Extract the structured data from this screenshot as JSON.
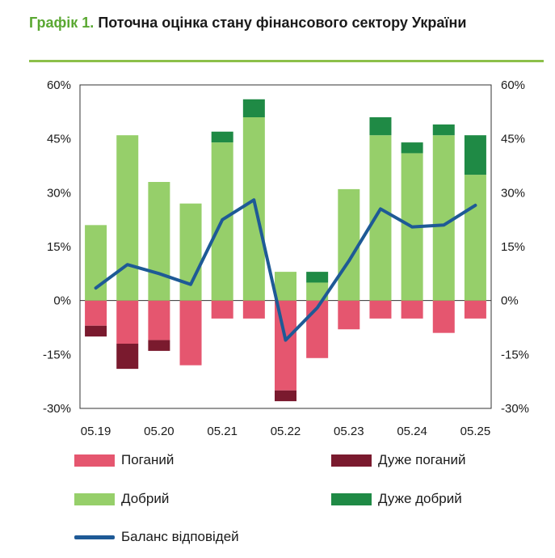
{
  "title": {
    "number": "Графік 1.",
    "text": "Поточна оцінка стану фінансового сектору України"
  },
  "colors": {
    "bad": "#e5566f",
    "very_bad": "#7a1a2e",
    "good": "#96cf6a",
    "very_good": "#1f8a45",
    "balance": "#1e5a96"
  },
  "chart_data": {
    "type": "bar",
    "subtype": "stacked bar with line overlay",
    "title": "",
    "x_tick_labels": [
      "05.19",
      "05.20",
      "05.21",
      "05.22",
      "05.23",
      "05.24",
      "05.25"
    ],
    "y_tick_labels": [
      "60%",
      "45%",
      "30%",
      "15%",
      "0%",
      "-15%",
      "-30%"
    ],
    "ylim": [
      -30,
      60
    ],
    "y_unit": "%",
    "grid": false,
    "legend_position": "bottom",
    "num_periods": 13,
    "series": [
      {
        "name": "Поганий",
        "color": "#e5566f",
        "values": [
          -7,
          -12,
          -11,
          -18,
          -5,
          -5,
          -25,
          -16,
          -8,
          -5,
          -5,
          -9,
          -5
        ]
      },
      {
        "name": "Дуже поганий",
        "color": "#7a1a2e",
        "values": [
          -3,
          -7,
          -3,
          0,
          0,
          0,
          -3,
          0,
          0,
          0,
          0,
          0,
          0
        ]
      },
      {
        "name": "Добрий",
        "color": "#96cf6a",
        "values": [
          21,
          46,
          33,
          27,
          44,
          51,
          8,
          5,
          31,
          46,
          41,
          46,
          35
        ]
      },
      {
        "name": "Дуже добрий",
        "color": "#1f8a45",
        "values": [
          0,
          0,
          0,
          0,
          3,
          5,
          0,
          3,
          0,
          5,
          3,
          3,
          11
        ]
      },
      {
        "name": "Баланс відповідей",
        "type": "line",
        "color": "#1e5a96",
        "values": [
          3.5,
          10,
          7.5,
          4.5,
          22.5,
          28,
          -11,
          -2,
          11,
          25.5,
          20.5,
          21,
          26.5
        ]
      }
    ]
  },
  "legend": {
    "bad": "Поганий",
    "very_bad": "Дуже поганий",
    "good": "Добрий",
    "very_good": "Дуже добрий",
    "balance": "Баланс відповідей"
  }
}
